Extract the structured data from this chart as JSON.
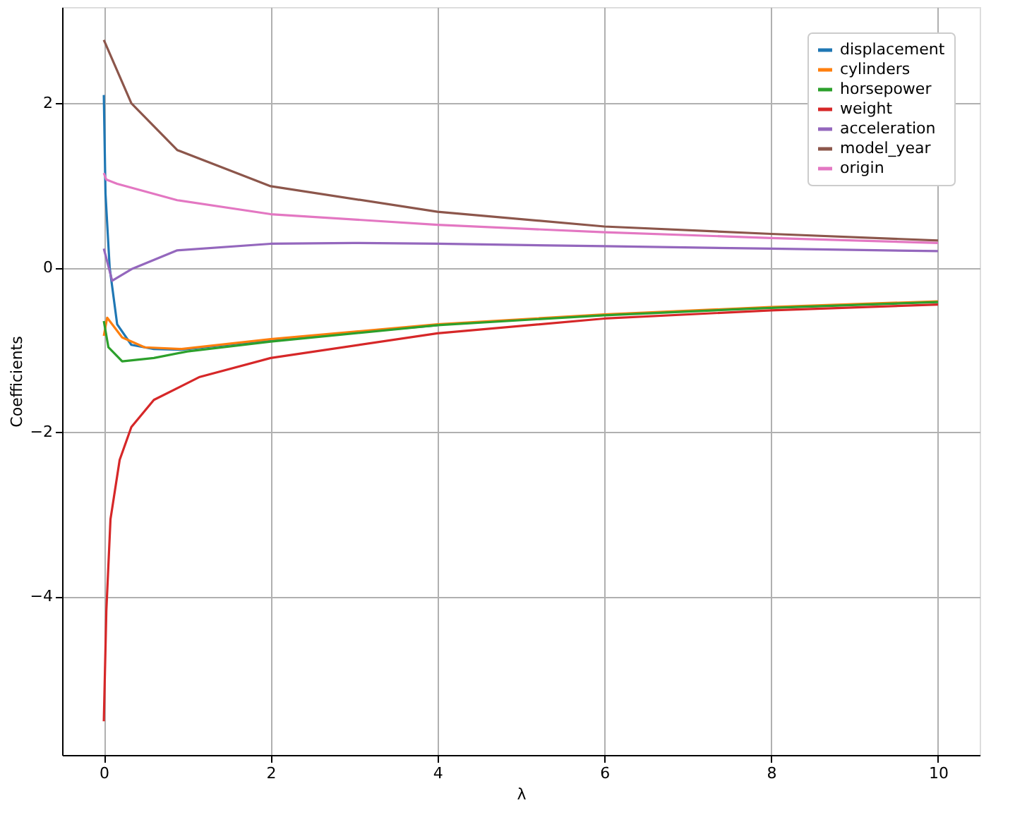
{
  "chart_data": {
    "type": "line",
    "xlabel": "λ",
    "ylabel": "Coefficients",
    "xlim": [
      -0.5,
      10.5
    ],
    "ylim": [
      -5.93,
      3.17
    ],
    "xticks": [
      0,
      2,
      4,
      6,
      8,
      10
    ],
    "yticks": [
      -4,
      -2,
      0,
      2
    ],
    "grid": true,
    "legend": "top right",
    "line_style": "solid",
    "series": [
      {
        "name": "displacement",
        "color": "#1f77b4",
        "x": [
          0,
          0.02,
          0.07,
          0.16,
          0.33,
          0.6,
          0.93,
          2,
          4
        ],
        "values": [
          2.1,
          0.9,
          0.0,
          -0.69,
          -0.94,
          -0.99,
          -1.0,
          -0.88,
          -0.7
        ]
      },
      {
        "name": "cylinders",
        "color": "#ff7f0e",
        "x": [
          0,
          0.04,
          0.22,
          0.49,
          0.93,
          2,
          4,
          6,
          8,
          10
        ],
        "values": [
          -0.83,
          -0.61,
          -0.85,
          -0.97,
          -0.99,
          -0.87,
          -0.69,
          -0.57,
          -0.48,
          -0.41
        ]
      },
      {
        "name": "horsepower",
        "color": "#2ca02c",
        "x": [
          0,
          0.055,
          0.22,
          0.6,
          1,
          2,
          4,
          6,
          8,
          10
        ],
        "values": [
          -0.65,
          -0.97,
          -1.14,
          -1.1,
          -1.02,
          -0.9,
          -0.7,
          -0.58,
          -0.49,
          -0.42
        ]
      },
      {
        "name": "weight",
        "color": "#d62728",
        "x": [
          0,
          0.03,
          0.08,
          0.19,
          0.33,
          0.6,
          1.15,
          2,
          4,
          6,
          8,
          10
        ],
        "values": [
          -5.52,
          -4.18,
          -3.06,
          -2.34,
          -1.94,
          -1.61,
          -1.33,
          -1.1,
          -0.8,
          -0.62,
          -0.52,
          -0.45
        ]
      },
      {
        "name": "acceleration",
        "color": "#9467bd",
        "x": [
          0,
          0.1,
          0.33,
          0.88,
          2,
          3,
          4,
          6,
          8,
          10
        ],
        "values": [
          0.23,
          -0.16,
          -0.02,
          0.21,
          0.29,
          0.3,
          0.29,
          0.26,
          0.23,
          0.2
        ]
      },
      {
        "name": "model_year",
        "color": "#8c564b",
        "x": [
          0,
          0.33,
          0.88,
          2,
          4,
          6,
          8,
          10
        ],
        "values": [
          2.77,
          2.0,
          1.43,
          0.99,
          0.68,
          0.5,
          0.41,
          0.33
        ]
      },
      {
        "name": "origin",
        "color": "#e377c2",
        "x": [
          0,
          0.03,
          0.16,
          0.88,
          2,
          4,
          6,
          8,
          10
        ],
        "values": [
          1.15,
          1.07,
          1.02,
          0.82,
          0.65,
          0.52,
          0.43,
          0.36,
          0.3
        ]
      }
    ]
  }
}
